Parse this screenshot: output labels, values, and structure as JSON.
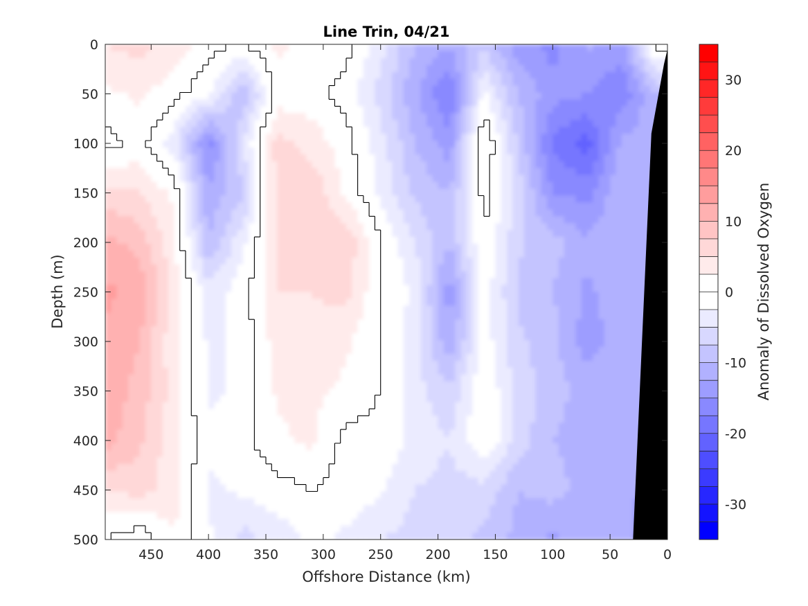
{
  "chart_data": {
    "type": "heatmap",
    "title": "Line Trin, 04/21",
    "xlabel": "Offshore Distance (km)",
    "ylabel": "Depth (m)",
    "colorbar_label": "Anomaly of Dissolved Oxygen",
    "xlim": [
      490,
      0
    ],
    "ylim": [
      0,
      500
    ],
    "y_reversed": true,
    "x_reversed": true,
    "x_ticks": [
      "450",
      "400",
      "350",
      "300",
      "250",
      "200",
      "150",
      "100",
      "50",
      "0"
    ],
    "y_ticks": [
      "0",
      "50",
      "100",
      "150",
      "200",
      "250",
      "300",
      "350",
      "400",
      "450",
      "500"
    ],
    "colorbar_ticks": [
      "30",
      "20",
      "10",
      "0",
      "-10",
      "-20",
      "-30"
    ],
    "colorbar_range": [
      -35,
      35
    ],
    "colorbar_step": 2.5,
    "grid": false,
    "colors": {
      "positive": "#ff0000",
      "negative": "#0000ff",
      "neutral": "#ffffff",
      "land": "#000000",
      "contour": "#000000"
    },
    "x_distance": [
      490,
      460,
      430,
      400,
      370,
      340,
      310,
      280,
      250,
      220,
      190,
      160,
      130,
      100,
      70,
      40,
      10
    ],
    "y_depth": [
      0,
      50,
      100,
      150,
      200,
      250,
      300,
      350,
      400,
      450,
      500
    ],
    "anomaly": [
      [
        5,
        6,
        4,
        1,
        0,
        3,
        2,
        1,
        -4,
        -10,
        -12,
        -8,
        -14,
        -16,
        -12,
        -14,
        1
      ],
      [
        2,
        3,
        1,
        -2,
        -10,
        1,
        1,
        -1,
        -6,
        -12,
        -18,
        -2,
        -10,
        -14,
        -15,
        -17,
        -10
      ],
      [
        -1,
        1,
        -4,
        -16,
        -5,
        6,
        4,
        1,
        -4,
        -10,
        -14,
        3,
        -8,
        -18,
        -21,
        -12,
        -11
      ],
      [
        6,
        5,
        2,
        -12,
        -8,
        6,
        7,
        2,
        -3,
        -8,
        -10,
        1,
        -6,
        -15,
        -16,
        -10,
        -11
      ],
      [
        11,
        9,
        3,
        -10,
        -3,
        5,
        6,
        7,
        0,
        -5,
        -10,
        0,
        -7,
        -9,
        -12,
        -10,
        -11
      ],
      [
        13,
        12,
        4,
        -4,
        -1,
        5,
        5,
        6,
        0,
        -3,
        -14,
        -1,
        -8,
        -10,
        -13,
        -11,
        -13
      ],
      [
        12,
        10,
        3,
        -3,
        -2,
        4,
        4,
        3,
        0,
        -4,
        -12,
        -1,
        -7,
        -9,
        -14,
        -11,
        -12
      ],
      [
        12,
        9,
        4,
        -3,
        -2,
        3,
        3,
        2,
        0,
        -4,
        -7,
        0,
        -6,
        -9,
        -11,
        -10,
        -12
      ],
      [
        11,
        8,
        3,
        -2,
        -1,
        2,
        3,
        -1,
        -1,
        -3,
        -5,
        0,
        -6,
        -10,
        -11,
        -10,
        -12
      ],
      [
        5,
        6,
        4,
        -3,
        -2,
        -1,
        0,
        -1,
        -2,
        -5,
        -6,
        -6,
        -10,
        -9,
        -11,
        -12,
        -13
      ],
      [
        0,
        -2,
        2,
        -2,
        -6,
        -4,
        -2,
        -3,
        -5,
        -6,
        -7,
        -8,
        -11,
        -13,
        -10,
        -12,
        -14
      ]
    ]
  }
}
